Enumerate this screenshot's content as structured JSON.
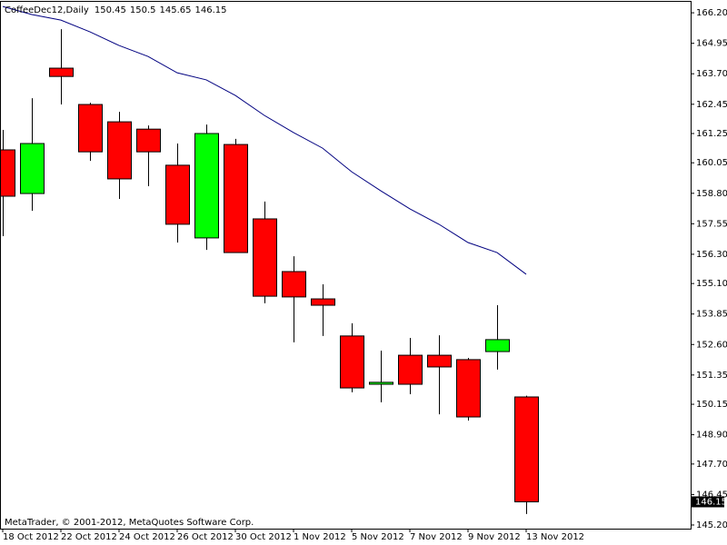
{
  "chart_data": {
    "type": "candlestick",
    "title": "CoffeeDec12,Daily",
    "footer": "MetaTrader, © 2001-2012, MetaQuotes Software Corp.",
    "categories": [
      "18 Oct 2012",
      null,
      "22 Oct 2012",
      null,
      "24 Oct 2012",
      null,
      "26 Oct 2012",
      null,
      "30 Oct 2012",
      null,
      "1 Nov 2012",
      null,
      "5 Nov 2012",
      null,
      "7 Nov 2012",
      null,
      "9 Nov 2012",
      null,
      "13 Nov 2012"
    ],
    "open": [
      160.58,
      158.79,
      163.93,
      162.44,
      161.73,
      161.43,
      159.95,
      156.97,
      160.8,
      157.75,
      155.59,
      154.47,
      152.95,
      150.97,
      152.16,
      152.16,
      151.98,
      152.31,
      150.45
    ],
    "high": [
      161.4,
      162.7,
      165.53,
      162.51,
      162.14,
      161.58,
      160.84,
      161.62,
      161.03,
      158.46,
      156.22,
      155.07,
      153.47,
      152.35,
      152.87,
      152.98,
      152.05,
      154.21,
      150.5
    ],
    "low": [
      157.04,
      158.08,
      162.44,
      160.13,
      158.57,
      159.09,
      156.78,
      156.48,
      156.37,
      154.29,
      152.69,
      152.95,
      150.64,
      150.23,
      150.56,
      149.74,
      149.48,
      151.57,
      145.65
    ],
    "close": [
      158.68,
      160.84,
      163.59,
      160.5,
      159.39,
      160.5,
      157.53,
      161.25,
      156.37,
      154.58,
      154.55,
      154.21,
      150.82,
      151.05,
      150.97,
      151.68,
      149.63,
      152.8,
      146.15
    ],
    "up_color": "#00ff00",
    "down_color": "#ff0000",
    "indicator": {
      "color": "#000080",
      "values": [
        166.46,
        166.13,
        165.9,
        165.42,
        164.86,
        164.41,
        163.74,
        163.45,
        162.81,
        161.99,
        161.29,
        160.65,
        159.68,
        158.9,
        158.16,
        157.53,
        156.78,
        156.37,
        155.48
      ]
    },
    "ylim": [
      145.05,
      166.65
    ],
    "yticks": [
      {
        "value": 166.2,
        "label": "166.20"
      },
      {
        "value": 164.95,
        "label": "164.95"
      },
      {
        "value": 163.7,
        "label": "163.70"
      },
      {
        "value": 162.45,
        "label": "162.45"
      },
      161.25,
      {
        "value": 160.05,
        "label": "160.05"
      },
      {
        "value": 158.8,
        "label": "158.80"
      },
      157.55,
      {
        "value": 156.3,
        "label": "156.30"
      },
      {
        "value": 155.1,
        "label": "155.10"
      },
      153.85,
      {
        "value": 152.6,
        "label": "152.60"
      },
      151.35,
      150.15,
      {
        "value": 148.9,
        "label": "148.90"
      },
      {
        "value": 147.7,
        "label": "147.70"
      },
      146.45,
      {
        "value": 145.2,
        "label": "145.20"
      }
    ]
  }
}
